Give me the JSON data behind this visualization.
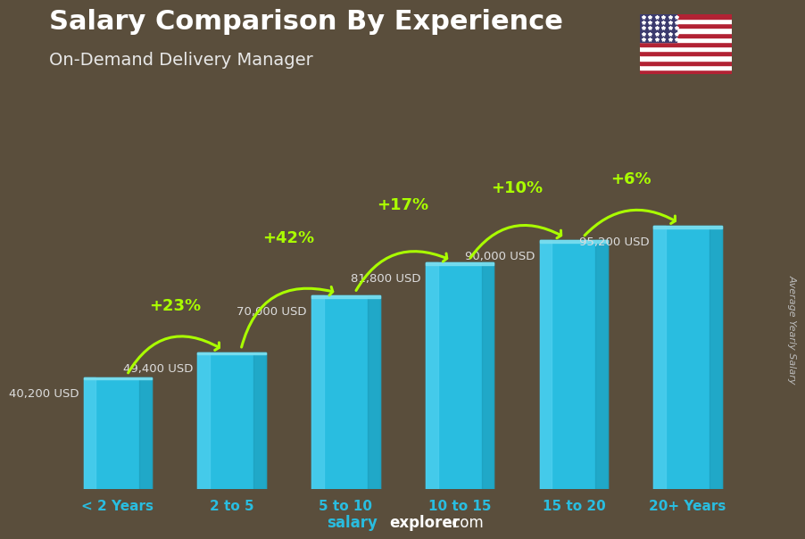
{
  "title": "Salary Comparison By Experience",
  "subtitle": "On-Demand Delivery Manager",
  "categories": [
    "< 2 Years",
    "2 to 5",
    "5 to 10",
    "10 to 15",
    "15 to 20",
    "20+ Years"
  ],
  "values": [
    40200,
    49400,
    70000,
    81800,
    90000,
    95200
  ],
  "labels": [
    "40,200 USD",
    "49,400 USD",
    "70,000 USD",
    "81,800 USD",
    "90,000 USD",
    "95,200 USD"
  ],
  "pct_changes": [
    "+23%",
    "+42%",
    "+17%",
    "+10%",
    "+6%"
  ],
  "bar_color_main": "#29bde0",
  "bar_color_light": "#50d0ef",
  "bar_color_dark": "#1a9ab8",
  "bar_color_top": "#7adeef",
  "label_color": "#dddddd",
  "pct_color": "#aaff00",
  "title_color": "#ffffff",
  "subtitle_color": "#e8e8e8",
  "xlabel_color": "#29bde0",
  "bg_color": "#5a4e3c",
  "footer_color_salary": "#29bde0",
  "footer_color_explorer": "#ffffff",
  "ylabel_text": "Average Yearly Salary",
  "ylim_max": 120000,
  "bar_width": 0.6
}
